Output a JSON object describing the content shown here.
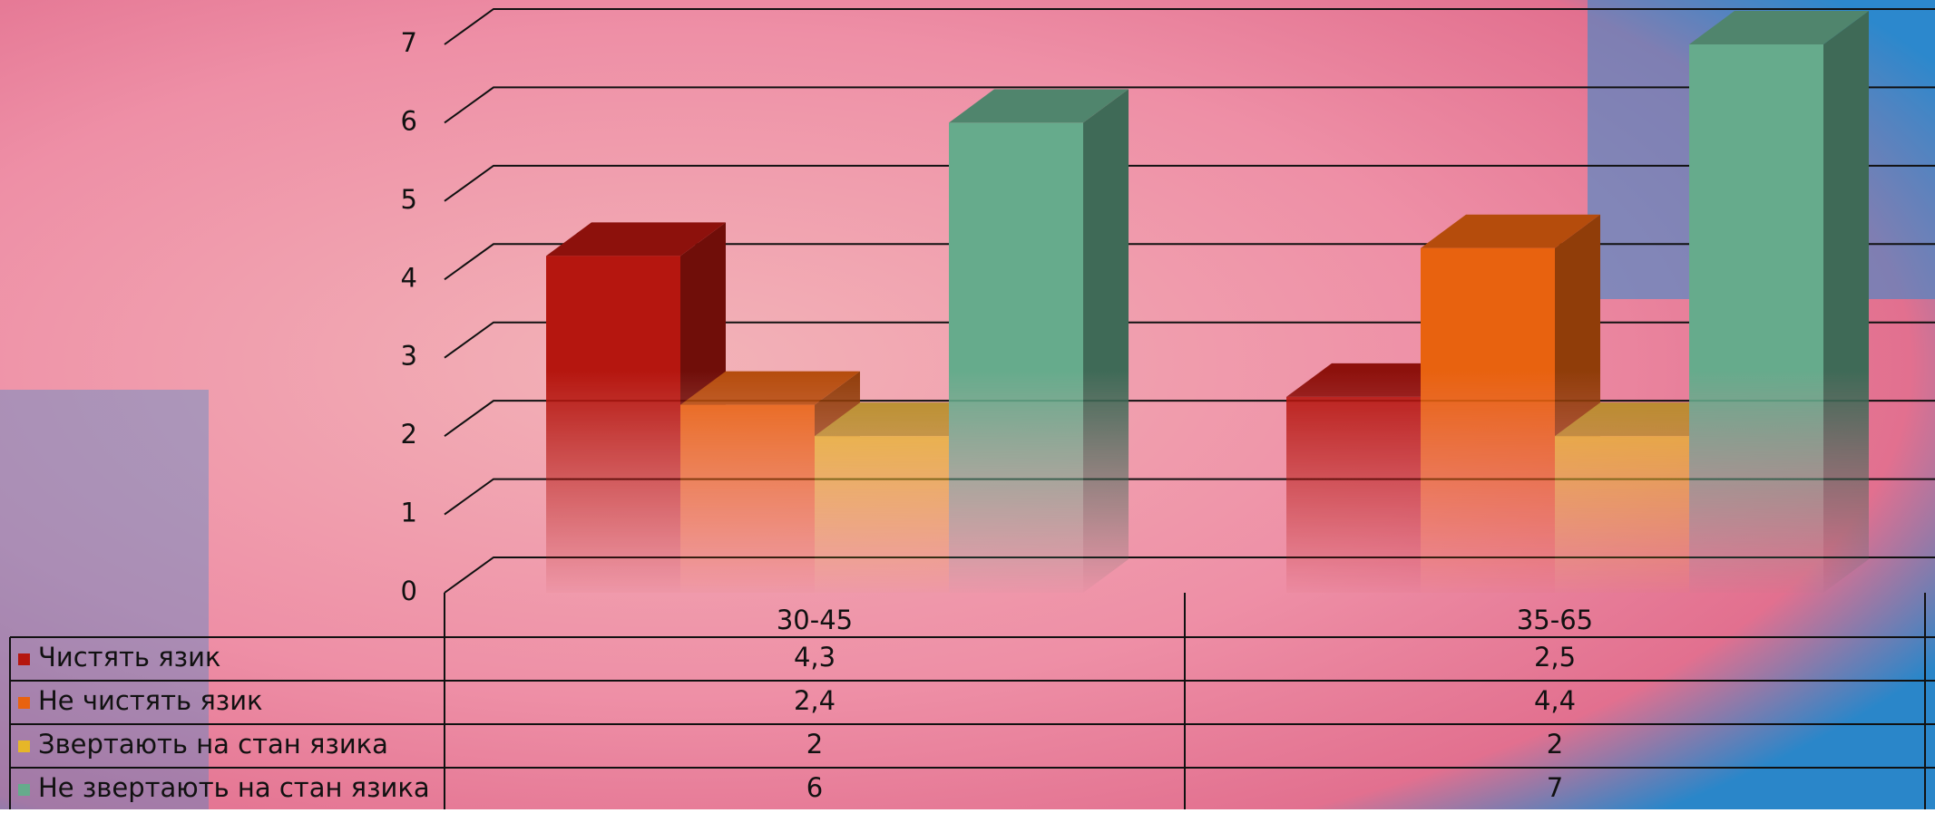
{
  "chart_data": {
    "type": "bar3d",
    "categories": [
      "30-45",
      "35-65"
    ],
    "series": [
      {
        "name": "Чистять язик",
        "color": "#b5160f",
        "values": [
          4.3,
          2.5
        ],
        "value_labels": [
          "4,3",
          "2,5"
        ]
      },
      {
        "name": "Не чистять язик",
        "color": "#e8620f",
        "values": [
          2.4,
          4.4
        ],
        "value_labels": [
          "2,4",
          "4,4"
        ]
      },
      {
        "name": "Звертають на стан язика",
        "color": "#e6b628",
        "values": [
          2,
          2
        ]
      },
      {
        "name": "Не звертають на стан язика",
        "color": "#66ab8c",
        "values": [
          6,
          7
        ]
      }
    ],
    "ylim": [
      0,
      7
    ],
    "yticks": [
      0,
      1,
      2,
      3,
      4,
      5,
      6,
      7
    ],
    "grid": true
  }
}
